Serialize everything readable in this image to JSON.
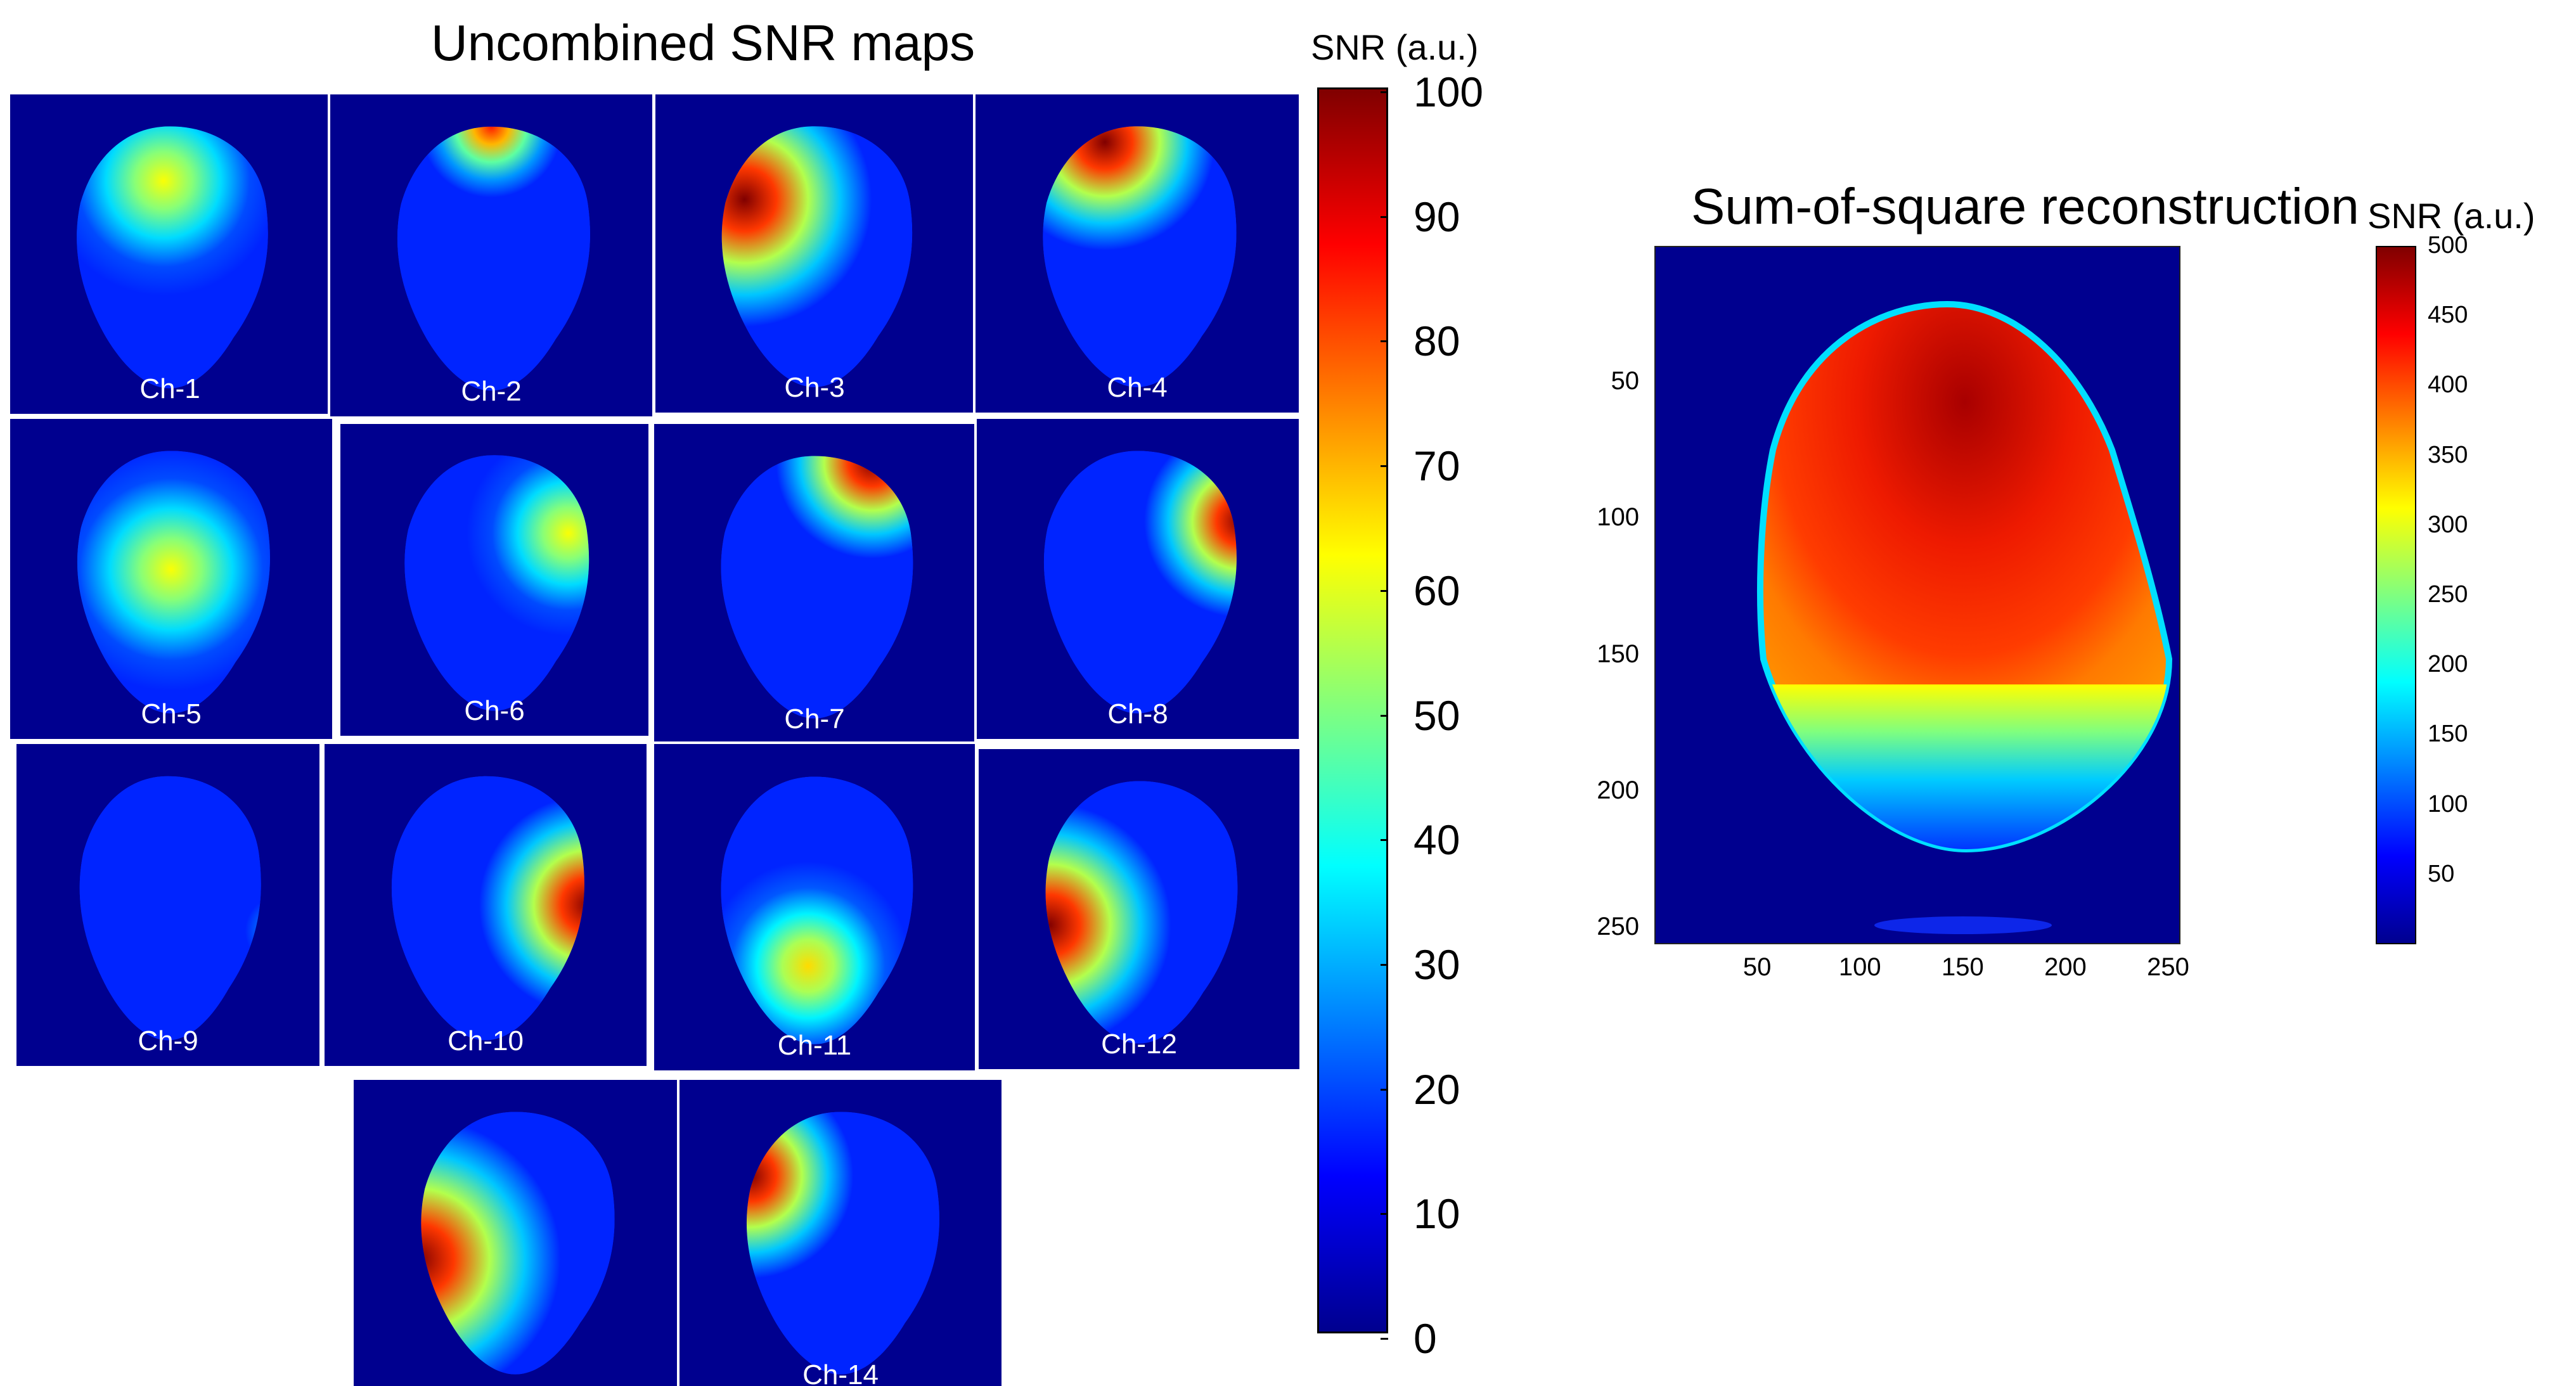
{
  "left_figure": {
    "title": "Uncombined SNR maps",
    "colorbar": {
      "title": "SNR (a.u.)",
      "ticks": [
        "100",
        "90",
        "80",
        "70",
        "60",
        "50",
        "40",
        "30",
        "20",
        "10",
        "0"
      ],
      "min": 0,
      "max": 100
    },
    "channels": [
      {
        "label": "Ch-1",
        "hot_x": 0.48,
        "hot_y": 0.27,
        "peak": 0.62,
        "spread": 0.36
      },
      {
        "label": "Ch-2",
        "hot_x": 0.5,
        "hot_y": 0.1,
        "peak": 0.85,
        "spread": 0.22
      },
      {
        "label": "Ch-3",
        "hot_x": 0.28,
        "hot_y": 0.33,
        "peak": 1.0,
        "spread": 0.4
      },
      {
        "label": "Ch-4",
        "hot_x": 0.4,
        "hot_y": 0.15,
        "peak": 1.0,
        "spread": 0.34
      },
      {
        "label": "Ch-5",
        "hot_x": 0.5,
        "hot_y": 0.47,
        "peak": 0.62,
        "spread": 0.38
      },
      {
        "label": "Ch-6",
        "hot_x": 0.74,
        "hot_y": 0.35,
        "peak": 0.62,
        "spread": 0.33
      },
      {
        "label": "Ch-7",
        "hot_x": 0.68,
        "hot_y": 0.12,
        "peak": 1.0,
        "spread": 0.3
      },
      {
        "label": "Ch-8",
        "hot_x": 0.82,
        "hot_y": 0.32,
        "peak": 1.0,
        "spread": 0.3
      },
      {
        "label": "Ch-9",
        "hot_x": 0.86,
        "hot_y": 0.58,
        "peak": 0.38,
        "spread": 0.14
      },
      {
        "label": "Ch-10",
        "hot_x": 0.82,
        "hot_y": 0.5,
        "peak": 1.0,
        "spread": 0.34
      },
      {
        "label": "Ch-11",
        "hot_x": 0.48,
        "hot_y": 0.68,
        "peak": 0.66,
        "spread": 0.32
      },
      {
        "label": "Ch-12",
        "hot_x": 0.22,
        "hot_y": 0.55,
        "peak": 1.0,
        "spread": 0.38
      },
      {
        "label": "",
        "hot_x": 0.2,
        "hot_y": 0.56,
        "peak": 1.0,
        "spread": 0.44
      },
      {
        "label": "Ch-14",
        "hot_x": 0.22,
        "hot_y": 0.3,
        "peak": 1.0,
        "spread": 0.32
      }
    ]
  },
  "right_figure": {
    "title": "Sum-of-square reconstruction",
    "colorbar": {
      "title": "SNR (a.u.)",
      "ticks": [
        "500",
        "450",
        "400",
        "350",
        "300",
        "250",
        "200",
        "150",
        "100",
        "50"
      ],
      "min": 0,
      "max": 500
    },
    "y_ticks": [
      "50",
      "100",
      "150",
      "200",
      "250"
    ],
    "x_ticks": [
      "50",
      "100",
      "150",
      "200",
      "250"
    ],
    "axis_max": 256
  },
  "colors": {
    "background_map": "#00008f",
    "jet": [
      "#00008f",
      "#0000ff",
      "#00ffff",
      "#ffff00",
      "#ff0000",
      "#800000"
    ]
  }
}
